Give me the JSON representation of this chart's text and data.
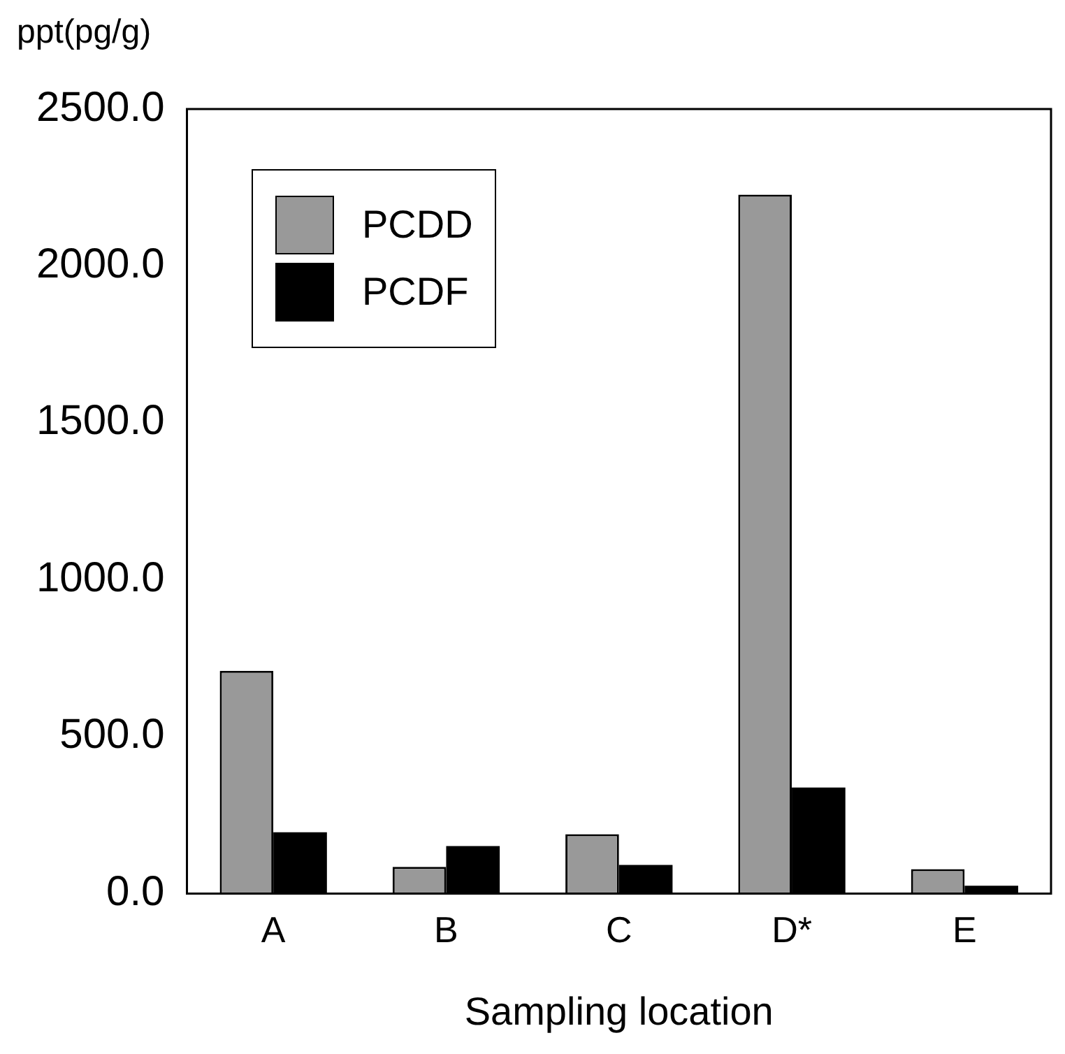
{
  "chart_data": {
    "type": "bar",
    "xlabel": "Sampling location",
    "ylabel": "ppt(pg/g)",
    "categories": [
      "A",
      "B",
      "C",
      "D*",
      "E"
    ],
    "series": [
      {
        "name": "PCDD",
        "color": "#999999",
        "values": [
          710,
          85,
          189,
          2227,
          78
        ]
      },
      {
        "name": "PCDF",
        "color": "#000000",
        "values": [
          195,
          151,
          91,
          338,
          25
        ]
      }
    ],
    "ylim": [
      0,
      2500
    ],
    "yticks": [
      {
        "value": 0,
        "label": "0.0"
      },
      {
        "value": 500,
        "label": "500.0"
      },
      {
        "value": 1000,
        "label": "1000.0"
      },
      {
        "value": 1500,
        "label": "1500.0"
      },
      {
        "value": 2000,
        "label": "2000.0"
      },
      {
        "value": 2500,
        "label": "2500.0"
      }
    ],
    "grid": false,
    "legend": "top left"
  }
}
